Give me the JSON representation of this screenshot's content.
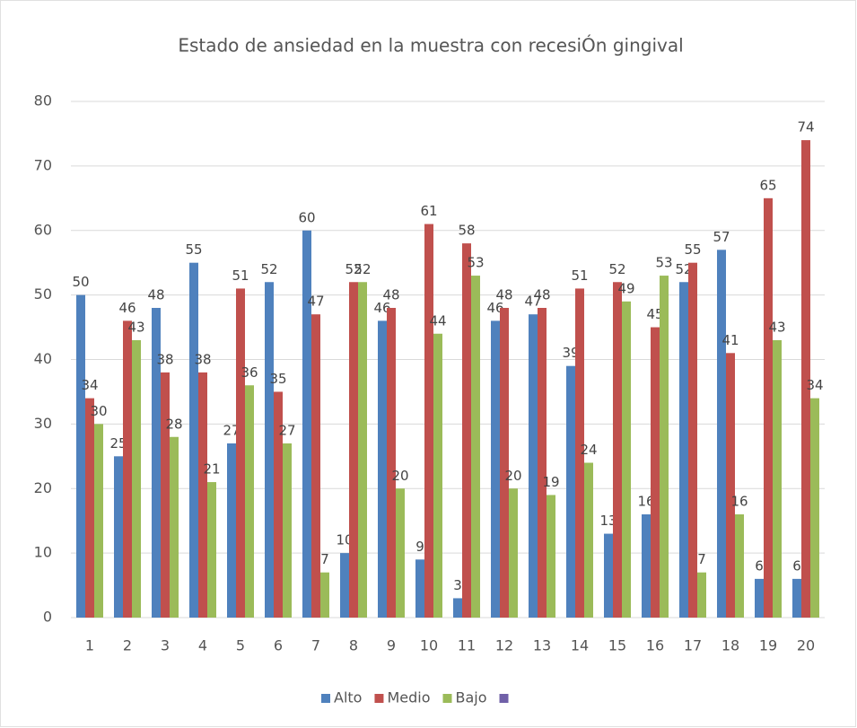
{
  "chart_data": {
    "type": "bar",
    "title": "Estado de ansiedad en la muestra con recesiÓn gingival",
    "categories": [
      "1",
      "2",
      "3",
      "4",
      "5",
      "6",
      "7",
      "8",
      "9",
      "10",
      "11",
      "12",
      "13",
      "14",
      "15",
      "16",
      "17",
      "18",
      "19",
      "20"
    ],
    "series": [
      {
        "name": "Alto",
        "color": "#4f81bd",
        "values": [
          50,
          25,
          48,
          55,
          27,
          52,
          60,
          10,
          46,
          9,
          3,
          46,
          47,
          39,
          13,
          16,
          52,
          57,
          6,
          6
        ]
      },
      {
        "name": "Medio",
        "color": "#c0504d",
        "values": [
          34,
          46,
          38,
          38,
          51,
          35,
          47,
          52,
          48,
          61,
          58,
          48,
          48,
          51,
          52,
          45,
          55,
          41,
          65,
          74
        ]
      },
      {
        "name": "Bajo",
        "color": "#9bbb59",
        "values": [
          30,
          43,
          28,
          21,
          36,
          27,
          7,
          52,
          20,
          44,
          53,
          20,
          19,
          24,
          49,
          53,
          7,
          16,
          43,
          34
        ]
      }
    ],
    "ylim": [
      0,
      80
    ],
    "yticks": [
      0,
      10,
      20,
      30,
      40,
      50,
      60,
      70,
      80
    ],
    "grid": true,
    "legend": "bottom"
  }
}
